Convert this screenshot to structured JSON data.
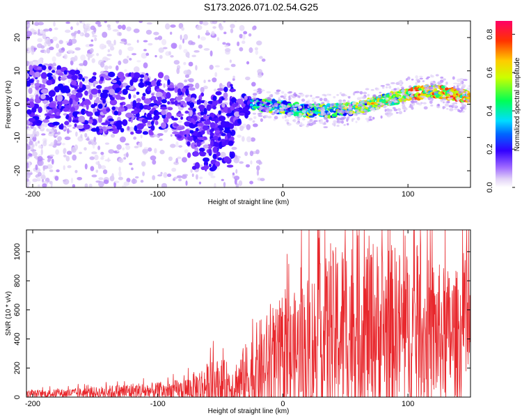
{
  "title": "S173.2026.071.02.54.G25",
  "chart_data": [
    {
      "type": "heatmap",
      "name": "spectrogram",
      "xlabel": "Height of straight line (km)",
      "ylabel": "Frequency (Hz)",
      "xlim": [
        -205,
        150
      ],
      "ylim": [
        -25,
        25
      ],
      "xticks": [
        -200,
        -100,
        0,
        100
      ],
      "yticks": [
        -20,
        -10,
        0,
        10,
        20
      ],
      "colorbar": {
        "label": "Normalized spectral amplitude",
        "range": [
          0.0,
          0.87
        ],
        "ticks": [
          0.0,
          0.2,
          0.4,
          0.6,
          0.8
        ],
        "colormap": [
          "#ffffff",
          "#d9c8f5",
          "#8a3cff",
          "#3300ff",
          "#0000ff",
          "#00d8ff",
          "#00ff66",
          "#ccff00",
          "#ffcc00",
          "#ff3300",
          "#ff0066"
        ]
      },
      "ridge_center_hz": {
        "x": [
          -200,
          -160,
          -120,
          -100,
          -80,
          -60,
          -40,
          -20,
          0,
          20,
          40,
          60,
          80,
          100,
          120,
          150
        ],
        "y": [
          3,
          1,
          0,
          0,
          -2,
          -6,
          -2,
          0,
          -1,
          -2,
          -2,
          -1,
          1,
          3,
          4,
          2
        ]
      }
    },
    {
      "type": "line",
      "name": "snr",
      "xlabel": "Height of straight line (km)",
      "ylabel": "SNR (10 * v/v)",
      "xlim": [
        -205,
        150
      ],
      "ylim": [
        0,
        1150
      ],
      "xticks": [
        -200,
        -100,
        0,
        100
      ],
      "yticks": [
        0,
        200,
        400,
        600,
        800,
        1000
      ],
      "color": "#e8282d",
      "envelope": {
        "x": [
          -205,
          -180,
          -150,
          -120,
          -100,
          -80,
          -70,
          -60,
          -50,
          -40,
          -30,
          -20,
          -10,
          0,
          10,
          20,
          30,
          40,
          50,
          60,
          70,
          80,
          90,
          100,
          110,
          120,
          130,
          140,
          150
        ],
        "baseline": [
          20,
          25,
          30,
          40,
          40,
          45,
          60,
          80,
          90,
          70,
          120,
          180,
          220,
          230,
          280,
          340,
          380,
          420,
          470,
          470,
          470,
          460,
          470,
          440,
          430,
          430,
          420,
          420,
          420
        ],
        "amplitude": [
          25,
          30,
          40,
          60,
          60,
          80,
          120,
          160,
          180,
          160,
          250,
          350,
          380,
          400,
          450,
          520,
          550,
          600,
          650,
          650,
          640,
          620,
          580,
          560,
          540,
          520,
          480,
          460,
          440
        ]
      }
    }
  ]
}
